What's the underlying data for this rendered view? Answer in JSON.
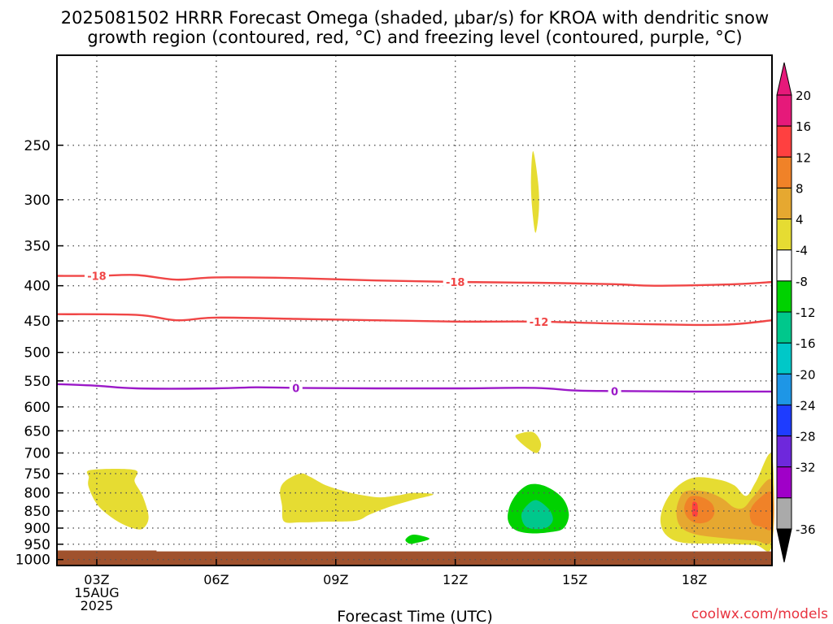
{
  "chart_data": {
    "type": "contour",
    "title_line1": "2025081502 HRRR Forecast Omega (shaded, μbar/s) for KROA with dendritic snow",
    "title_line2": "growth region (contoured, red, °C) and freezing level (contoured, purple, °C)",
    "xlabel": "Forecast Time (UTC)",
    "ylabel": "",
    "credit": "coolwx.com/models",
    "x_ticks": [
      {
        "hour": 3,
        "label": "03Z",
        "sub1": "15AUG",
        "sub2": "2025"
      },
      {
        "hour": 6,
        "label": "06Z"
      },
      {
        "hour": 9,
        "label": "09Z"
      },
      {
        "hour": 12,
        "label": "12Z"
      },
      {
        "hour": 15,
        "label": "15Z"
      },
      {
        "hour": 18,
        "label": "18Z"
      }
    ],
    "xlim": [
      2,
      19.95
    ],
    "y_ticks": [
      250,
      300,
      350,
      400,
      450,
      500,
      550,
      600,
      650,
      700,
      750,
      800,
      850,
      900,
      950,
      1000
    ],
    "y_tick_labels": [
      "250",
      "300",
      "350",
      "400",
      "450",
      "500",
      "550",
      "600",
      "650",
      "700",
      "750",
      "800",
      "850",
      "900",
      "950",
      "1000"
    ],
    "ylim": [
      1020,
      185
    ],
    "y_scale": "log-pressure",
    "grid": true,
    "terrain": {
      "color": "#a0522d",
      "pressure_top": 970,
      "step_at_hour": 4.5,
      "pressure_top_after": 973
    },
    "colorbar": {
      "levels": [
        {
          "label": "20",
          "color": "#e6197a"
        },
        {
          "label": "16",
          "color": "#ff4040"
        },
        {
          "label": "12",
          "color": "#f08228"
        },
        {
          "label": "8",
          "color": "#e6a830"
        },
        {
          "label": "4",
          "color": "#e6dc32"
        },
        {
          "label": "-4",
          "color": "#ffffff"
        },
        {
          "label": "-8",
          "color": "#00d200"
        },
        {
          "label": "-12",
          "color": "#00c88c"
        },
        {
          "label": "-16",
          "color": "#00c8c8"
        },
        {
          "label": "-20",
          "color": "#1e96e6"
        },
        {
          "label": "-24",
          "color": "#1e3cff"
        },
        {
          "label": "-28",
          "color": "#6e28dc"
        },
        {
          "label": "-32",
          "color": "#a000c8"
        },
        {
          "label": "-36",
          "color": "#aaaaaa"
        }
      ],
      "top_triangle_color": "#e6197a",
      "bottom_triangle_color": "#000000"
    },
    "contours": [
      {
        "name": "-18",
        "color": "#f04646",
        "label": "-18",
        "label_points": [
          [
            3.0,
            0
          ],
          [
            12.0,
            0
          ]
        ],
        "points": [
          [
            2,
            387
          ],
          [
            3,
            387
          ],
          [
            4,
            386
          ],
          [
            5,
            392
          ],
          [
            6,
            389
          ],
          [
            8,
            390
          ],
          [
            10,
            393
          ],
          [
            12,
            395
          ],
          [
            14,
            396
          ],
          [
            16,
            398
          ],
          [
            17,
            400
          ],
          [
            19,
            398
          ],
          [
            19.95,
            395
          ]
        ]
      },
      {
        "name": "-12",
        "color": "#f04646",
        "label": "-12",
        "label_points": [
          [
            14.1,
            0
          ]
        ],
        "points": [
          [
            2,
            440
          ],
          [
            4,
            441
          ],
          [
            5,
            449
          ],
          [
            6,
            445
          ],
          [
            8,
            447
          ],
          [
            10,
            449
          ],
          [
            12,
            451
          ],
          [
            14,
            451
          ],
          [
            16,
            454
          ],
          [
            18,
            456
          ],
          [
            19,
            455
          ],
          [
            19.95,
            449
          ]
        ]
      },
      {
        "name": "0",
        "color": "#9b19c8",
        "label": "0",
        "label_points": [
          [
            8.0,
            0
          ],
          [
            16.0,
            0
          ]
        ],
        "points": [
          [
            2,
            556
          ],
          [
            3,
            559
          ],
          [
            4,
            564
          ],
          [
            6,
            564
          ],
          [
            7,
            562
          ],
          [
            8,
            563
          ],
          [
            10,
            564
          ],
          [
            12,
            564
          ],
          [
            14,
            563
          ],
          [
            15,
            568
          ],
          [
            16,
            569
          ],
          [
            18,
            570
          ],
          [
            19.95,
            570
          ]
        ]
      }
    ],
    "shaded_regions": [
      {
        "name": "omega-pos-300",
        "level": "4",
        "color": "#e6dc32",
        "points": [
          [
            13.95,
            255
          ],
          [
            14.08,
            283
          ],
          [
            14.1,
            310
          ],
          [
            14.02,
            335
          ],
          [
            13.95,
            318
          ],
          [
            13.9,
            285
          ]
        ]
      },
      {
        "name": "omega-pos-660",
        "level": "4",
        "color": "#e6dc32",
        "points": [
          [
            13.55,
            658
          ],
          [
            13.95,
            653
          ],
          [
            14.15,
            678
          ],
          [
            14.05,
            700
          ],
          [
            13.8,
            688
          ],
          [
            13.55,
            668
          ]
        ]
      },
      {
        "name": "omega-pos-03z",
        "level": "4",
        "color": "#e6dc32",
        "points": [
          [
            2.85,
            741
          ],
          [
            3.95,
            741
          ],
          [
            3.95,
            770
          ],
          [
            4.15,
            808
          ],
          [
            4.3,
            865
          ],
          [
            4.2,
            897
          ],
          [
            4.0,
            903
          ],
          [
            3.55,
            882
          ],
          [
            3.05,
            837
          ],
          [
            2.8,
            786
          ],
          [
            2.8,
            760
          ]
        ]
      },
      {
        "name": "omega-pos-08z",
        "level": "4",
        "color": "#e6dc32",
        "points": [
          [
            8.1,
            750
          ],
          [
            8.35,
            758
          ],
          [
            8.75,
            780
          ],
          [
            9.2,
            795
          ],
          [
            9.6,
            805
          ],
          [
            10.1,
            812
          ],
          [
            10.55,
            807
          ],
          [
            10.95,
            800
          ],
          [
            11.45,
            804
          ],
          [
            10.9,
            820
          ],
          [
            10.35,
            838
          ],
          [
            9.85,
            860
          ],
          [
            9.5,
            878
          ],
          [
            8.7,
            881
          ],
          [
            8.1,
            883
          ],
          [
            7.7,
            880
          ],
          [
            7.65,
            835
          ],
          [
            7.6,
            795
          ],
          [
            7.72,
            770
          ]
        ]
      },
      {
        "name": "omega-neg-11z",
        "level": "-8",
        "color": "#00d200",
        "points": [
          [
            10.75,
            935
          ],
          [
            10.95,
            920
          ],
          [
            11.35,
            932
          ],
          [
            11.05,
            945
          ],
          [
            10.85,
            948
          ]
        ]
      },
      {
        "name": "omega-neg-14z-outer",
        "level": "-8",
        "color": "#00d200",
        "points": [
          [
            13.9,
            777
          ],
          [
            14.3,
            784
          ],
          [
            14.7,
            815
          ],
          [
            14.85,
            860
          ],
          [
            14.72,
            900
          ],
          [
            14.4,
            912
          ],
          [
            13.9,
            916
          ],
          [
            13.5,
            905
          ],
          [
            13.32,
            875
          ],
          [
            13.38,
            832
          ],
          [
            13.6,
            796
          ]
        ]
      },
      {
        "name": "omega-neg-14z-inner",
        "level": "-12",
        "color": "#00c88c",
        "points": [
          [
            14.05,
            820
          ],
          [
            14.35,
            845
          ],
          [
            14.45,
            875
          ],
          [
            14.3,
            898
          ],
          [
            14.0,
            903
          ],
          [
            13.75,
            893
          ],
          [
            13.66,
            860
          ],
          [
            13.82,
            832
          ]
        ]
      },
      {
        "name": "omega-pos-18z-outer",
        "level": "4",
        "color": "#e6dc32",
        "points": [
          [
            18.0,
            760
          ],
          [
            18.6,
            765
          ],
          [
            19.0,
            780
          ],
          [
            19.3,
            808
          ],
          [
            19.55,
            770
          ],
          [
            19.95,
            706
          ],
          [
            19.95,
            952
          ],
          [
            19.5,
            952
          ],
          [
            18.5,
            948
          ],
          [
            17.7,
            945
          ],
          [
            17.3,
            922
          ],
          [
            17.15,
            880
          ],
          [
            17.25,
            830
          ],
          [
            17.55,
            785
          ]
        ]
      },
      {
        "name": "omega-pos-18z-mid",
        "level": "8",
        "color": "#e6a830",
        "points": [
          [
            17.8,
            795
          ],
          [
            18.3,
            797
          ],
          [
            18.7,
            815
          ],
          [
            19.0,
            840
          ],
          [
            19.25,
            840
          ],
          [
            19.5,
            808
          ],
          [
            19.95,
            768
          ],
          [
            19.95,
            935
          ],
          [
            19.5,
            938
          ],
          [
            18.7,
            930
          ],
          [
            18.0,
            918
          ],
          [
            17.65,
            895
          ],
          [
            17.55,
            855
          ],
          [
            17.62,
            818
          ]
        ]
      },
      {
        "name": "omega-pos-18z-inner",
        "level": "12",
        "color": "#f08228",
        "points": [
          [
            17.9,
            810
          ],
          [
            18.2,
            812
          ],
          [
            18.45,
            830
          ],
          [
            18.5,
            858
          ],
          [
            18.35,
            880
          ],
          [
            18.05,
            885
          ],
          [
            17.82,
            868
          ],
          [
            17.75,
            838
          ]
        ]
      },
      {
        "name": "omega-pos-20z-inner",
        "level": "12",
        "color": "#f08228",
        "points": [
          [
            19.95,
            800
          ],
          [
            19.6,
            818
          ],
          [
            19.4,
            850
          ],
          [
            19.45,
            885
          ],
          [
            19.65,
            895
          ],
          [
            19.95,
            900
          ]
        ]
      },
      {
        "name": "omega-pos-18z-core",
        "level": "16",
        "color": "#ff4040",
        "points": [
          [
            18.0,
            824
          ],
          [
            18.08,
            832
          ],
          [
            18.08,
            862
          ],
          [
            18.0,
            866
          ],
          [
            17.95,
            860
          ],
          [
            17.95,
            830
          ]
        ]
      }
    ]
  }
}
